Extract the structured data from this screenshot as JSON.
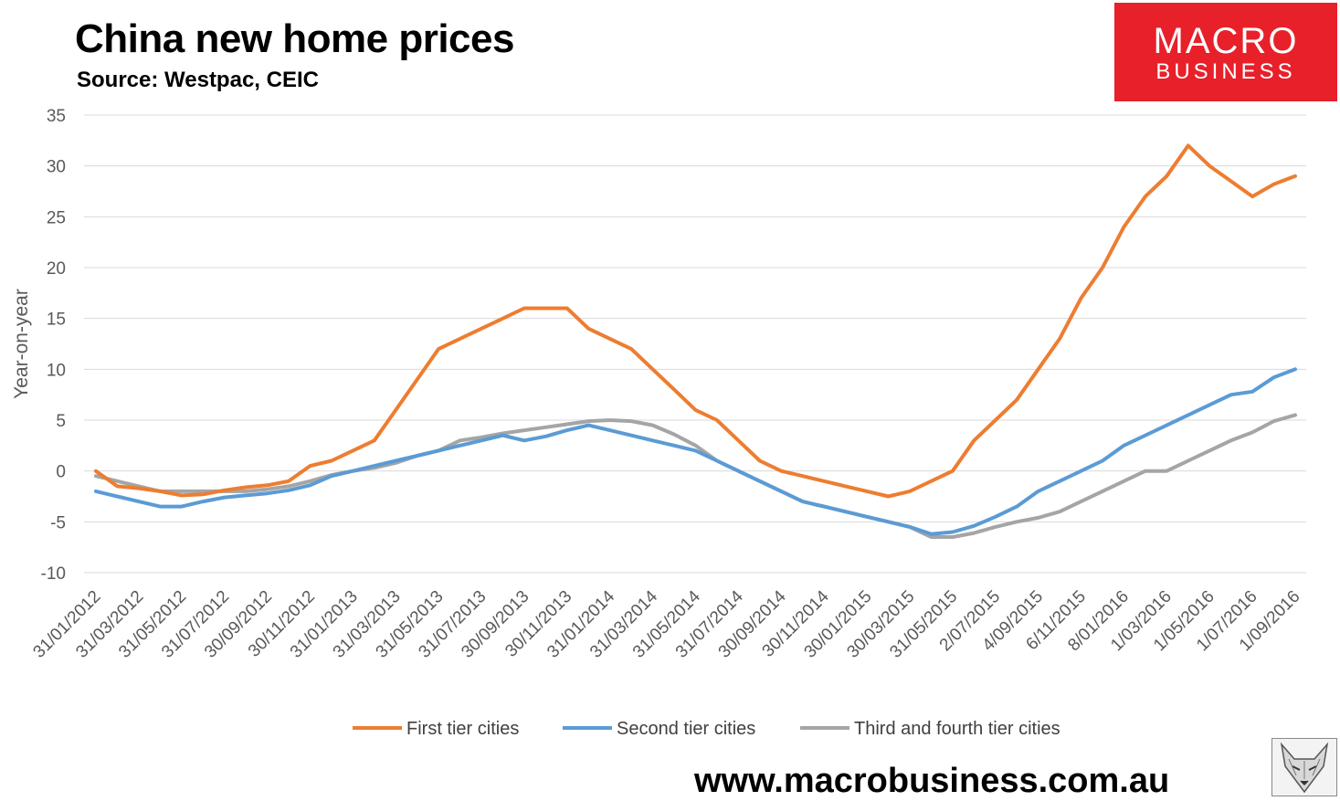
{
  "header": {
    "title": "China new home prices",
    "subtitle": "Source: Westpac, CEIC"
  },
  "logo": {
    "line1": "MACRO",
    "line2": "BUSINESS"
  },
  "footer": {
    "url": "www.macrobusiness.com.au"
  },
  "chart_data": {
    "type": "line",
    "ylabel": "Year-on-year",
    "ylim": [
      -10,
      35
    ],
    "yticks": [
      -10,
      -5,
      0,
      5,
      10,
      15,
      20,
      25,
      30,
      35
    ],
    "grid": true,
    "legend_position": "bottom",
    "x_tick_labels": [
      "31/01/2012",
      "31/03/2012",
      "31/05/2012",
      "31/07/2012",
      "30/09/2012",
      "30/11/2012",
      "31/01/2013",
      "31/03/2013",
      "31/05/2013",
      "31/07/2013",
      "30/09/2013",
      "30/11/2013",
      "31/01/2014",
      "31/03/2014",
      "31/05/2014",
      "31/07/2014",
      "30/09/2014",
      "30/11/2014",
      "30/01/2015",
      "30/03/2015",
      "31/05/2015",
      "2/07/2015",
      "4/09/2015",
      "6/11/2015",
      "8/01/2016",
      "1/03/2016",
      "1/05/2016",
      "1/07/2016",
      "1/09/2016"
    ],
    "series": [
      {
        "name": "First tier cities",
        "color": "#ed7d31",
        "values": [
          0,
          -1.5,
          -1.7,
          -2,
          -2.4,
          -2.3,
          -1.9,
          -1.6,
          -1.4,
          -1,
          0.5,
          1,
          2,
          3,
          6,
          9,
          12,
          13,
          14,
          15,
          16,
          16,
          16,
          14,
          13,
          12,
          10,
          8,
          6,
          5,
          3,
          1,
          0,
          -0.5,
          -1,
          -1.5,
          -2,
          -2.5,
          -2,
          -1,
          0,
          3,
          5,
          7,
          10,
          13,
          17,
          20,
          24,
          27,
          29,
          32,
          30,
          28.5,
          27,
          28.2,
          29
        ]
      },
      {
        "name": "Second tier cities",
        "color": "#5b9bd5",
        "values": [
          -2,
          -2.5,
          -3,
          -3.5,
          -3.5,
          -3,
          -2.6,
          -2.4,
          -2.2,
          -1.9,
          -1.4,
          -0.5,
          0,
          0.5,
          1,
          1.5,
          2,
          2.5,
          3,
          3.5,
          3,
          3.4,
          4,
          4.5,
          4,
          3.5,
          3,
          2.5,
          2,
          1,
          0,
          -1,
          -2,
          -3,
          -3.5,
          -4,
          -4.5,
          -5,
          -5.5,
          -6.2,
          -6,
          -5.4,
          -4.5,
          -3.5,
          -2,
          -1,
          0,
          1,
          2.5,
          3.5,
          4.5,
          5.5,
          6.5,
          7.5,
          7.8,
          9.2,
          10
        ]
      },
      {
        "name": "Third and fourth tier cities",
        "color": "#a5a5a5",
        "values": [
          -0.5,
          -1,
          -1.5,
          -2,
          -2,
          -2,
          -2,
          -2,
          -1.8,
          -1.5,
          -1,
          -0.4,
          0,
          0.3,
          0.8,
          1.5,
          2,
          3,
          3.3,
          3.7,
          4,
          4.3,
          4.6,
          4.9,
          5,
          4.9,
          4.5,
          3.6,
          2.5,
          1,
          0,
          -1,
          -2,
          -3,
          -3.5,
          -4,
          -4.5,
          -5,
          -5.5,
          -6.5,
          -6.5,
          -6.1,
          -5.5,
          -5,
          -4.6,
          -4,
          -3,
          -2,
          -1,
          0,
          0,
          1,
          2,
          3,
          3.8,
          4.9,
          5.5
        ]
      }
    ]
  }
}
